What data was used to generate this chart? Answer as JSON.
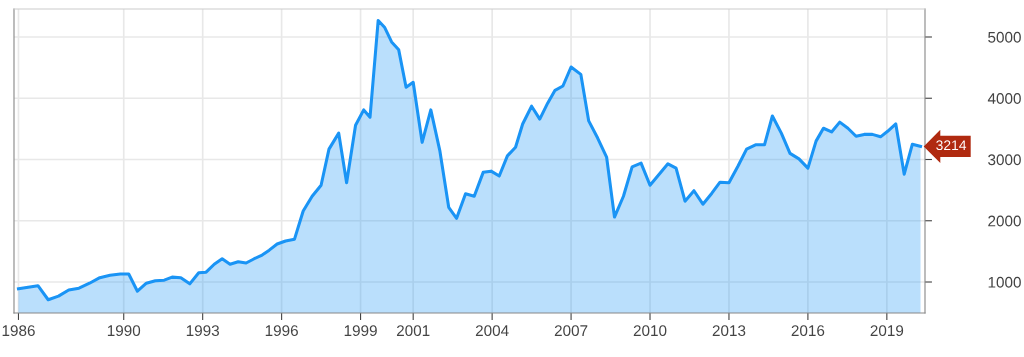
{
  "chart_data": {
    "type": "area",
    "x": [
      1986.0,
      1986.74,
      1987.13,
      1987.52,
      1987.91,
      1988.3,
      1988.7,
      1989.09,
      1989.48,
      1989.87,
      1990.19,
      1990.52,
      1990.86,
      1991.2,
      1991.54,
      1991.84,
      1992.17,
      1992.51,
      1992.85,
      1993.13,
      1993.44,
      1993.74,
      1994.04,
      1994.35,
      1994.65,
      1994.96,
      1995.26,
      1995.53,
      1995.83,
      1996.15,
      1996.49,
      1996.82,
      1997.16,
      1997.5,
      1997.8,
      1998.17,
      1998.47,
      1998.81,
      1999.12,
      1999.36,
      1999.67,
      1999.91,
      2000.18,
      2000.45,
      2000.73,
      2001.0,
      2001.34,
      2001.67,
      2002.01,
      2002.35,
      2002.65,
      2002.99,
      2003.32,
      2003.66,
      2003.96,
      2004.27,
      2004.58,
      2004.89,
      2005.16,
      2005.5,
      2005.81,
      2006.11,
      2006.39,
      2006.69,
      2007.0,
      2007.37,
      2007.67,
      2008.01,
      2008.35,
      2008.65,
      2008.99,
      2009.32,
      2009.66,
      2010.0,
      2010.68,
      2010.99,
      2011.33,
      2011.67,
      2012.01,
      2012.35,
      2012.66,
      2013.0,
      2013.34,
      2013.67,
      2014.01,
      2014.35,
      2014.65,
      2014.99,
      2015.32,
      2015.66,
      2016.0,
      2016.31,
      2016.59,
      2016.9,
      2017.21,
      2017.52,
      2017.83,
      2018.14,
      2018.45,
      2018.76,
      2019.03,
      2019.34,
      2019.66,
      2019.97,
      2020.28
    ],
    "series": [
      {
        "color": "#1a94f5",
        "values": [
          890,
          940,
          710,
          770,
          870,
          900,
          980,
          1070,
          1110,
          1130,
          1130,
          850,
          980,
          1020,
          1030,
          1080,
          1070,
          970,
          1150,
          1160,
          1290,
          1380,
          1290,
          1330,
          1310,
          1380,
          1440,
          1520,
          1620,
          1670,
          1700,
          2160,
          2400,
          2580,
          3170,
          3430,
          2620,
          3560,
          3810,
          3690,
          5270,
          5160,
          4920,
          4790,
          4180,
          4260,
          3280,
          3810,
          3150,
          2220,
          2040,
          2440,
          2400,
          2790,
          2810,
          2730,
          3060,
          3200,
          3580,
          3870,
          3660,
          3920,
          4130,
          4200,
          4510,
          4390,
          3630,
          3350,
          3040,
          2060,
          2400,
          2880,
          2940,
          2580,
          2930,
          2860,
          2320,
          2490,
          2270,
          2450,
          2630,
          2620,
          2890,
          3170,
          3240,
          3240,
          3710,
          3430,
          3100,
          3010,
          2860,
          3300,
          3510,
          3450,
          3610,
          3510,
          3380,
          3410,
          3410,
          3370,
          3460,
          3580,
          2760,
          3250,
          3214
        ]
      }
    ],
    "xlim": [
      1985.83,
      2020.45
    ],
    "xticks": [
      {
        "value": 1986,
        "label": "1986"
      },
      1990,
      1993,
      1996,
      1999,
      2001,
      2004,
      2007,
      2010,
      2013,
      2016,
      2019
    ],
    "ylim": [
      494,
      5457
    ],
    "yticks": [
      1000,
      2000,
      3000,
      4000,
      5000
    ],
    "annotations": [
      {
        "text": "3214",
        "x": 2020.28,
        "y": 3214
      }
    ],
    "grid": true,
    "legend": false
  }
}
